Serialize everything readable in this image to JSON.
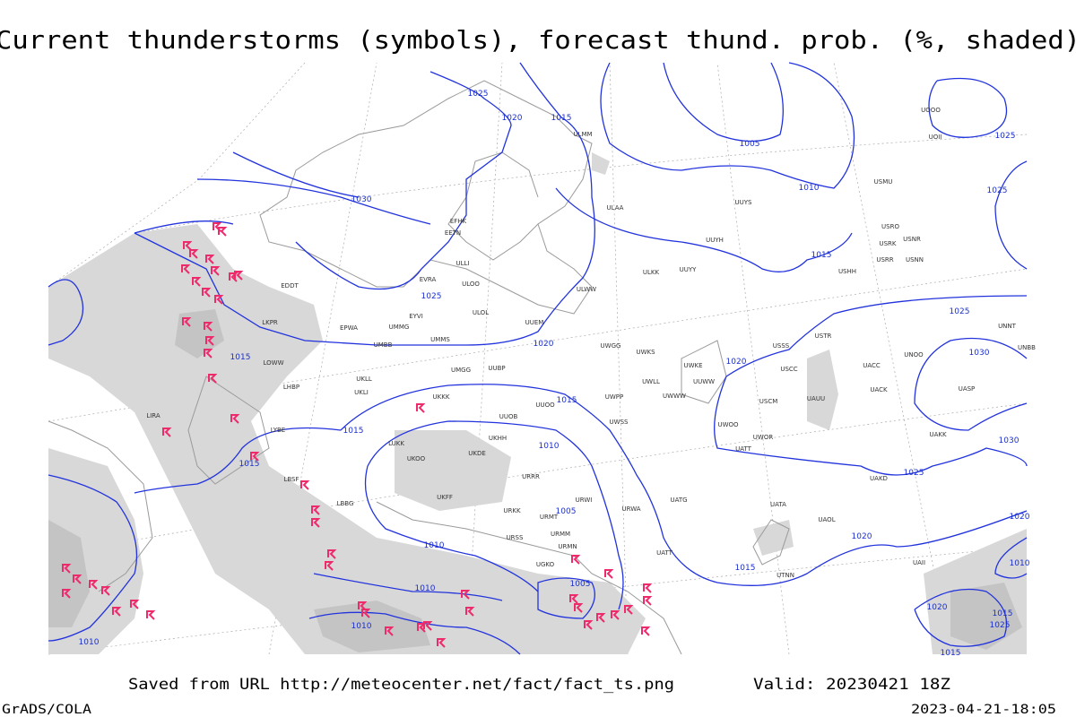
{
  "header": {
    "title": "Current thunderstorms (symbols), forecast thund. prob. (%, shaded)"
  },
  "isobar_labels": [
    "1025",
    "1020",
    "1015",
    "1005",
    "1010",
    "1025",
    "1025",
    "1030",
    "1025",
    "1015",
    "1025",
    "1030",
    "1020",
    "1020",
    "1015",
    "1015",
    "1015",
    "1010",
    "1015",
    "1030",
    "1025",
    "1005",
    "1010",
    "1020",
    "1015",
    "1010",
    "1005",
    "1010",
    "1010",
    "1020",
    "1015",
    "1025",
    "1020",
    "1010",
    "1015"
  ],
  "station_labels": [
    "ULMM",
    "ULAA",
    "UUYS",
    "UUYH",
    "ULKK",
    "UUYY",
    "ULWW",
    "UUEM",
    "ULOL",
    "ULOO",
    "EVRA",
    "EETN",
    "EFHK",
    "EPWA",
    "UMMG",
    "UMMS",
    "UMBB",
    "UKLL",
    "UKLI",
    "UKKK",
    "UUOB",
    "UUBP",
    "UMGG",
    "UUOO",
    "UWPP",
    "UWSS",
    "UWKE",
    "UWKS",
    "UWWW",
    "UWLL",
    "UWGG",
    "USCC",
    "USCM",
    "UAUU",
    "UWOO",
    "UWOR",
    "UATT",
    "USSS",
    "USTR",
    "UACC",
    "UACK",
    "UNOO",
    "UASP",
    "UAKK",
    "UAKD",
    "UNBB",
    "UNNT",
    "USHH",
    "USRR",
    "USRK",
    "USRO",
    "USNN",
    "USNR",
    "USMU",
    "UOOO",
    "UOII",
    "LUKK",
    "UKOO",
    "UKDE",
    "UKHH",
    "UKFF",
    "URRR",
    "URKK",
    "URMT",
    "URMM",
    "URMN",
    "URSS",
    "URWI",
    "URWA",
    "UATG",
    "UATA",
    "UAOL",
    "UAII",
    "UTNN",
    "UATT",
    "UGKO",
    "EDDT",
    "EYVI",
    "LKPR",
    "LOWW",
    "LHBP",
    "LIRA",
    "LYBE",
    "LBSF",
    "LBBG",
    "ULLI",
    "UUWW"
  ],
  "footer": {
    "source": "Saved from URL http://meteocenter.net/fact/fact_ts.png",
    "valid": "Valid: 20230421 18Z",
    "software": "GrADS/COLA",
    "timestamp": "2023-04-21-18:05"
  }
}
